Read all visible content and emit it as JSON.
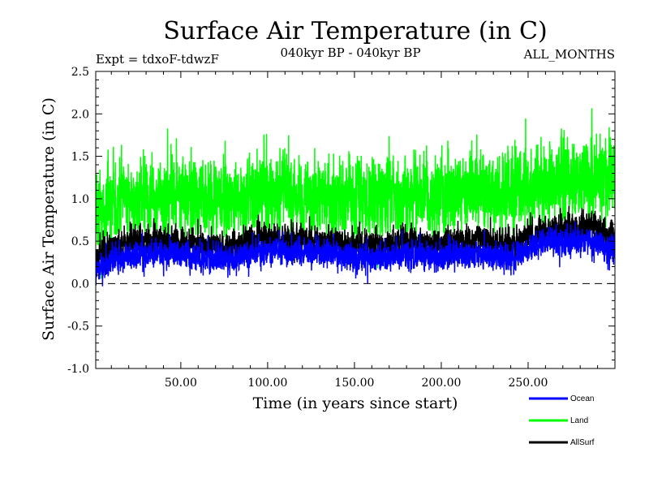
{
  "chart_data": {
    "type": "line",
    "title": "Surface Air Temperature (in C)",
    "subtitle": "040kyr BP - 040kyr BP",
    "experiment": "Expt = tdxoF-tdwzF",
    "months": "ALL_MONTHS",
    "xlabel": "Time (in years since start)",
    "ylabel": "Surface Air Temperature (in C)",
    "xlim": [
      1,
      300
    ],
    "ylim": [
      -1.0,
      2.5
    ],
    "x_ticks": [
      50,
      100,
      150,
      200,
      250
    ],
    "x_tick_labels": [
      "50.00",
      "100.00",
      "150.00",
      "200.00",
      "250.00"
    ],
    "y_ticks": [
      -1.0,
      -0.5,
      0.0,
      0.5,
      1.0,
      1.5,
      2.0,
      2.5
    ],
    "y_tick_labels": [
      "-1.0",
      "-0.5",
      "0.0",
      "0.5",
      "1.0",
      "1.5",
      "2.0",
      "2.5"
    ],
    "reference_line": 0.0,
    "legend_placement": "bottom-right, below plot",
    "series": [
      {
        "name": "Land",
        "color": "#00ff00",
        "x": [
          1,
          15,
          30,
          45,
          60,
          75,
          90,
          105,
          120,
          135,
          150,
          165,
          180,
          195,
          210,
          225,
          240,
          255,
          270,
          285,
          300
        ],
        "values": [
          0.85,
          0.95,
          1.0,
          1.0,
          1.0,
          0.95,
          1.05,
          1.1,
          1.0,
          1.05,
          1.0,
          1.0,
          1.05,
          1.0,
          1.05,
          1.1,
          1.1,
          1.15,
          1.2,
          1.25,
          1.25
        ],
        "spread": 0.55
      },
      {
        "name": "Ocean",
        "color": "#0000ff",
        "x": [
          1,
          15,
          30,
          45,
          60,
          75,
          90,
          105,
          120,
          135,
          150,
          165,
          180,
          195,
          210,
          225,
          240,
          255,
          270,
          285,
          300
        ],
        "values": [
          0.15,
          0.3,
          0.35,
          0.35,
          0.3,
          0.3,
          0.35,
          0.4,
          0.35,
          0.35,
          0.3,
          0.3,
          0.35,
          0.3,
          0.35,
          0.35,
          0.3,
          0.45,
          0.5,
          0.5,
          0.4
        ],
        "spread": 0.2
      },
      {
        "name": "AllSurf",
        "color": "#000000",
        "x": [
          1,
          15,
          30,
          45,
          60,
          75,
          90,
          105,
          120,
          135,
          150,
          165,
          180,
          195,
          210,
          225,
          240,
          255,
          270,
          285,
          300
        ],
        "values": [
          0.35,
          0.45,
          0.5,
          0.5,
          0.45,
          0.45,
          0.5,
          0.55,
          0.5,
          0.5,
          0.45,
          0.45,
          0.5,
          0.45,
          0.5,
          0.5,
          0.45,
          0.6,
          0.65,
          0.7,
          0.55
        ],
        "spread": 0.22
      }
    ]
  }
}
